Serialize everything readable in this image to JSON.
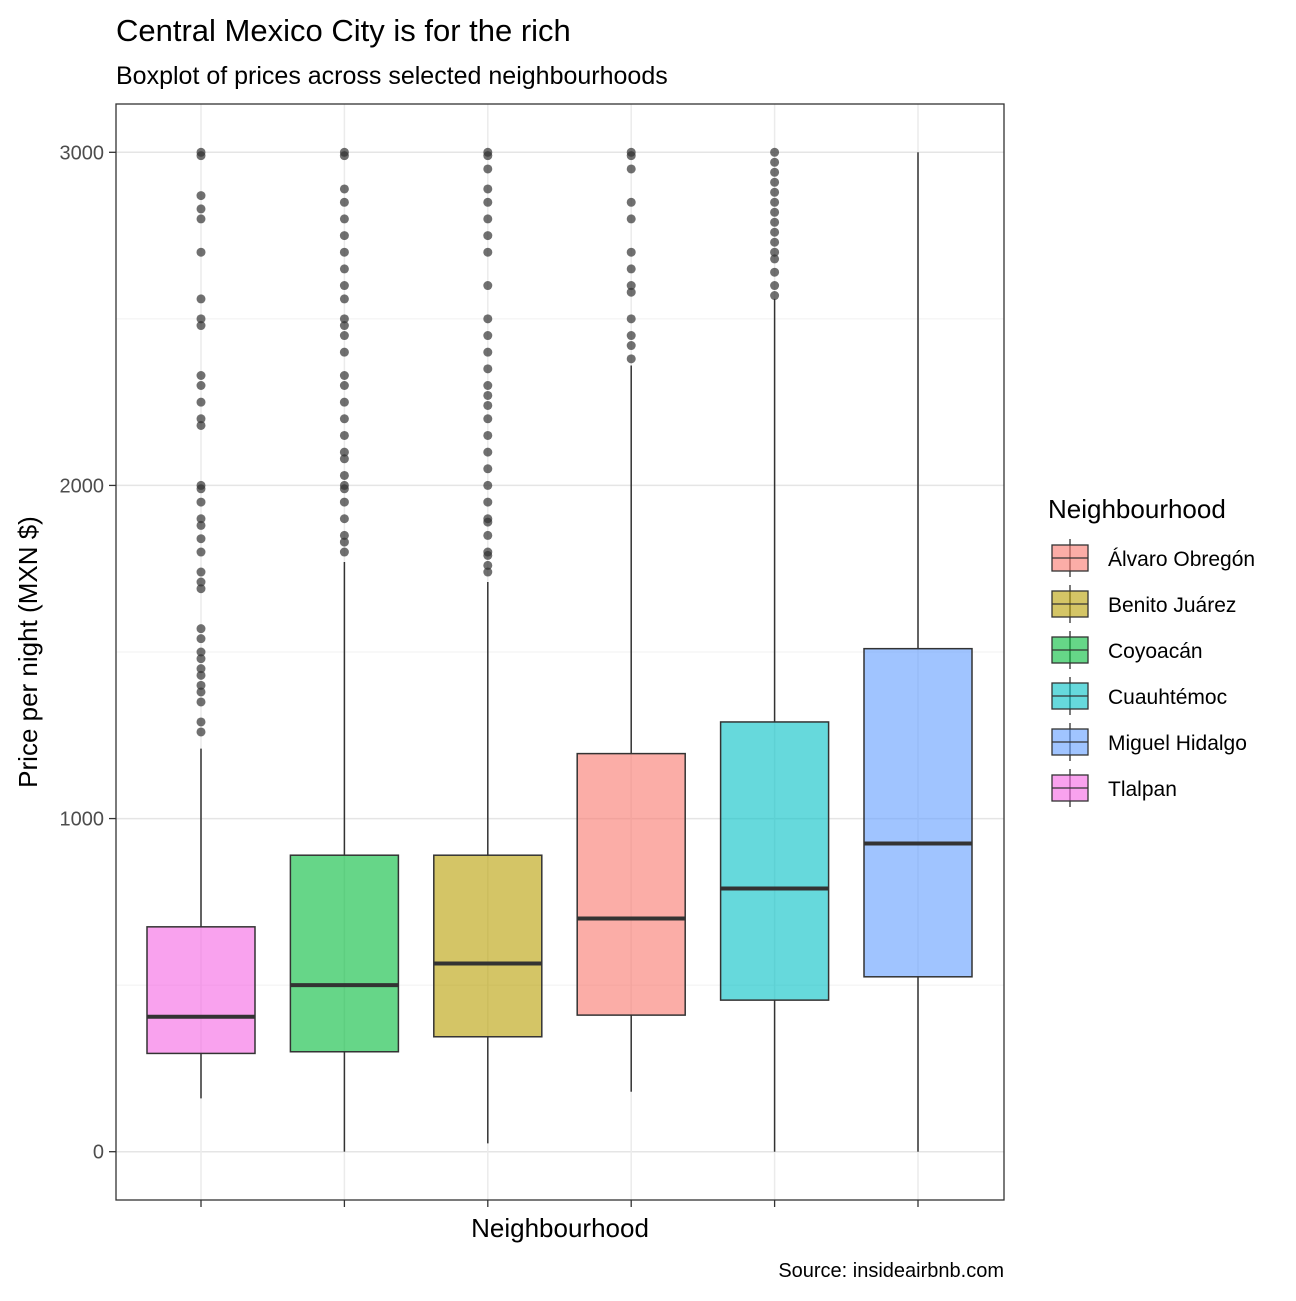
{
  "chart_data": {
    "type": "boxplot",
    "title": "Central Mexico City is for the rich",
    "subtitle": "Boxplot of prices across selected neighbourhoods",
    "xlabel": "Neighbourhood",
    "ylabel": "Price per night (MXN $)",
    "caption": "Source: insideairbnb.com",
    "ylim": [
      -145,
      3145
    ],
    "y_ticks": [
      0,
      1000,
      2000,
      3000
    ],
    "grid": true,
    "legend": {
      "title": "Neighbourhood",
      "position": "right",
      "entries": [
        {
          "label": "Álvaro Obregón",
          "color": "#F8766D"
        },
        {
          "label": "Benito Juárez",
          "color": "#B79F00"
        },
        {
          "label": "Coyoacán",
          "color": "#00BA38"
        },
        {
          "label": "Cuauhtémoc",
          "color": "#00BFC4"
        },
        {
          "label": "Miguel Hidalgo",
          "color": "#619CFF"
        },
        {
          "label": "Tlalpan",
          "color": "#F564E3"
        }
      ]
    },
    "boxes": [
      {
        "name": "Tlalpan",
        "color": "#F564E3",
        "q1": 295,
        "median": 405,
        "q3": 675,
        "whisker_low": 160,
        "whisker_high": 1210,
        "outliers": [
          1260,
          1290,
          1350,
          1380,
          1400,
          1430,
          1450,
          1480,
          1500,
          1540,
          1570,
          1690,
          1710,
          1740,
          1800,
          1840,
          1880,
          1900,
          1950,
          1990,
          2000,
          2180,
          2200,
          2250,
          2300,
          2330,
          2480,
          2500,
          2560,
          2700,
          2800,
          2830,
          2870,
          2990,
          3000
        ]
      },
      {
        "name": "Coyoacán",
        "color": "#00BA38",
        "q1": 300,
        "median": 500,
        "q3": 890,
        "whisker_low": 0,
        "whisker_high": 1770,
        "outliers": [
          1800,
          1830,
          1850,
          1900,
          1950,
          1990,
          2000,
          2030,
          2080,
          2100,
          2150,
          2200,
          2250,
          2300,
          2330,
          2400,
          2450,
          2480,
          2500,
          2560,
          2600,
          2650,
          2700,
          2750,
          2800,
          2850,
          2890,
          2990,
          3000
        ]
      },
      {
        "name": "Benito Juárez",
        "color": "#B79F00",
        "q1": 345,
        "median": 565,
        "q3": 890,
        "whisker_low": 25,
        "whisker_high": 1710,
        "outliers": [
          1740,
          1760,
          1790,
          1800,
          1850,
          1890,
          1900,
          1950,
          2000,
          2050,
          2100,
          2150,
          2200,
          2240,
          2270,
          2300,
          2350,
          2400,
          2450,
          2500,
          2600,
          2700,
          2750,
          2800,
          2850,
          2890,
          2950,
          2990,
          3000
        ]
      },
      {
        "name": "Álvaro Obregón",
        "color": "#F8766D",
        "q1": 410,
        "median": 700,
        "q3": 1195,
        "whisker_low": 180,
        "whisker_high": 2360,
        "outliers": [
          2380,
          2420,
          2450,
          2500,
          2580,
          2600,
          2650,
          2700,
          2800,
          2850,
          2950,
          2990,
          3000
        ]
      },
      {
        "name": "Cuauhtémoc",
        "color": "#00BFC4",
        "q1": 455,
        "median": 790,
        "q3": 1290,
        "whisker_low": 0,
        "whisker_high": 2560,
        "outliers": [
          2570,
          2600,
          2640,
          2680,
          2700,
          2730,
          2760,
          2790,
          2820,
          2850,
          2880,
          2910,
          2940,
          2970,
          3000
        ]
      },
      {
        "name": "Miguel Hidalgo",
        "color": "#619CFF",
        "q1": 525,
        "median": 925,
        "q3": 1510,
        "whisker_low": 0,
        "whisker_high": 3000,
        "outliers": []
      }
    ]
  }
}
